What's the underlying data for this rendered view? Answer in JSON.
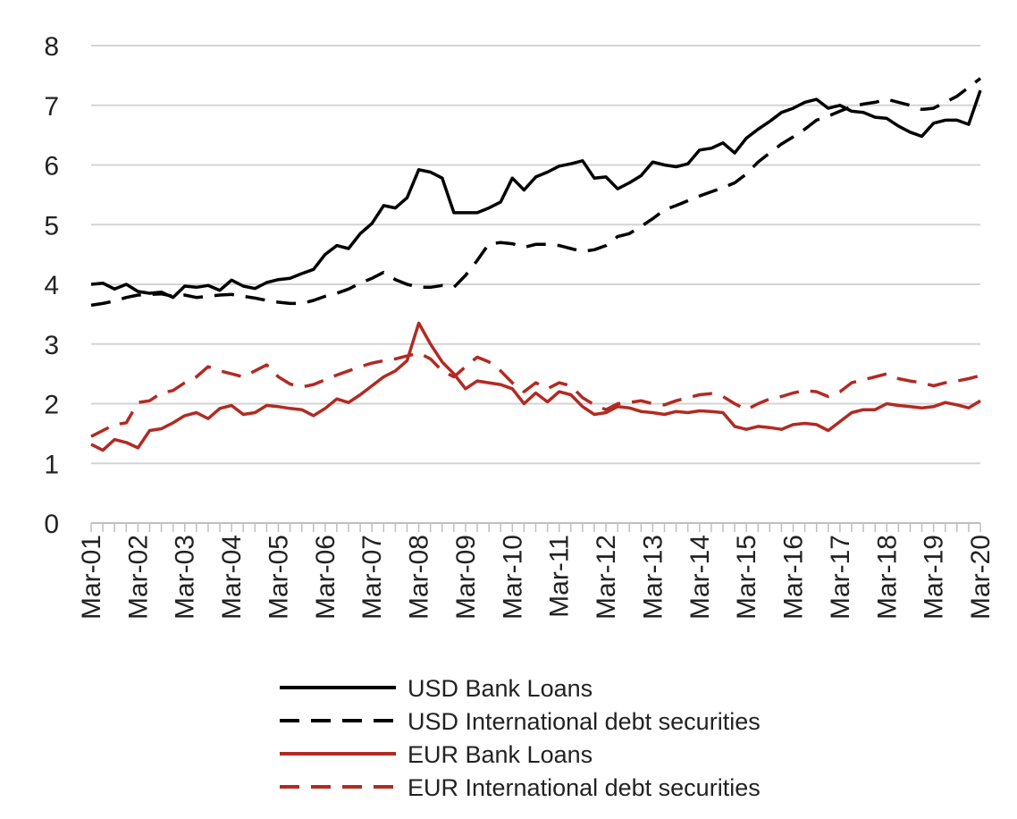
{
  "chart_data": {
    "type": "line",
    "title": "",
    "xlabel": "",
    "ylabel": "",
    "ylim": [
      0,
      8
    ],
    "yticks": [
      0,
      1,
      2,
      3,
      4,
      5,
      6,
      7,
      8
    ],
    "grid": "horizontal",
    "legend_position": "bottom",
    "x": [
      "Mar-01",
      "Jun-01",
      "Sep-01",
      "Dec-01",
      "Mar-02",
      "Jun-02",
      "Sep-02",
      "Dec-02",
      "Mar-03",
      "Jun-03",
      "Sep-03",
      "Dec-03",
      "Mar-04",
      "Jun-04",
      "Sep-04",
      "Dec-04",
      "Mar-05",
      "Jun-05",
      "Sep-05",
      "Dec-05",
      "Mar-06",
      "Jun-06",
      "Sep-06",
      "Dec-06",
      "Mar-07",
      "Jun-07",
      "Sep-07",
      "Dec-07",
      "Mar-08",
      "Jun-08",
      "Sep-08",
      "Dec-08",
      "Mar-09",
      "Jun-09",
      "Sep-09",
      "Dec-09",
      "Mar-10",
      "Jun-10",
      "Sep-10",
      "Dec-10",
      "Mar-11",
      "Jun-11",
      "Sep-11",
      "Dec-11",
      "Mar-12",
      "Jun-12",
      "Sep-12",
      "Dec-12",
      "Mar-13",
      "Jun-13",
      "Sep-13",
      "Dec-13",
      "Mar-14",
      "Jun-14",
      "Sep-14",
      "Dec-14",
      "Mar-15",
      "Jun-15",
      "Sep-15",
      "Dec-15",
      "Mar-16",
      "Jun-16",
      "Sep-16",
      "Dec-16",
      "Mar-17",
      "Jun-17",
      "Sep-17",
      "Dec-17",
      "Mar-18",
      "Jun-18",
      "Sep-18",
      "Dec-18",
      "Mar-19",
      "Jun-19",
      "Sep-19",
      "Dec-19",
      "Mar-20"
    ],
    "x_tick_labels": [
      "Mar-01",
      "Mar-02",
      "Mar-03",
      "Mar-04",
      "Mar-05",
      "Mar-06",
      "Mar-07",
      "Mar-08",
      "Mar-09",
      "Mar-10",
      "Mar-11",
      "Mar-12",
      "Mar-13",
      "Mar-14",
      "Mar-15",
      "Mar-16",
      "Mar-17",
      "Mar-18",
      "Mar-19",
      "Mar-20"
    ],
    "series": [
      {
        "name": "USD Bank Loans",
        "color": "#000000",
        "dash": "solid",
        "values": [
          4.0,
          4.02,
          3.92,
          4.0,
          3.88,
          3.85,
          3.87,
          3.78,
          3.97,
          3.95,
          3.98,
          3.9,
          4.07,
          3.97,
          3.93,
          4.03,
          4.08,
          4.1,
          4.18,
          4.25,
          4.5,
          4.65,
          4.6,
          4.85,
          5.02,
          5.32,
          5.28,
          5.45,
          5.92,
          5.88,
          5.78,
          5.2,
          5.2,
          5.2,
          5.28,
          5.38,
          5.78,
          5.58,
          5.8,
          5.88,
          5.98,
          6.02,
          6.07,
          5.78,
          5.8,
          5.6,
          5.7,
          5.82,
          6.05,
          6.0,
          5.97,
          6.02,
          6.25,
          6.28,
          6.37,
          6.2,
          6.45,
          6.6,
          6.73,
          6.88,
          6.95,
          7.05,
          7.1,
          6.95,
          7.0,
          6.9,
          6.88,
          6.8,
          6.78,
          6.65,
          6.55,
          6.48,
          6.7,
          6.75,
          6.75,
          6.68,
          7.25
        ]
      },
      {
        "name": "USD International debt securities",
        "color": "#000000",
        "dash": "dashed",
        "values": [
          3.65,
          3.68,
          3.72,
          3.78,
          3.82,
          3.83,
          3.84,
          3.8,
          3.82,
          3.78,
          3.8,
          3.82,
          3.83,
          3.8,
          3.77,
          3.73,
          3.7,
          3.68,
          3.68,
          3.73,
          3.8,
          3.85,
          3.92,
          4.02,
          4.1,
          4.2,
          4.08,
          4.0,
          3.95,
          3.95,
          3.98,
          3.95,
          4.15,
          4.4,
          4.68,
          4.7,
          4.68,
          4.62,
          4.67,
          4.67,
          4.65,
          4.6,
          4.55,
          4.58,
          4.65,
          4.8,
          4.85,
          4.97,
          5.1,
          5.25,
          5.32,
          5.4,
          5.48,
          5.55,
          5.62,
          5.7,
          5.85,
          6.05,
          6.2,
          6.35,
          6.47,
          6.6,
          6.75,
          6.82,
          6.9,
          6.98,
          7.02,
          7.05,
          7.1,
          7.05,
          7.0,
          6.93,
          6.95,
          7.05,
          7.15,
          7.3,
          7.45
        ]
      },
      {
        "name": "EUR Bank Loans",
        "color": "#b22a22",
        "dash": "solid",
        "values": [
          1.32,
          1.22,
          1.4,
          1.35,
          1.26,
          1.55,
          1.58,
          1.68,
          1.8,
          1.85,
          1.75,
          1.92,
          1.97,
          1.82,
          1.85,
          1.97,
          1.95,
          1.92,
          1.9,
          1.8,
          1.92,
          2.08,
          2.02,
          2.15,
          2.3,
          2.45,
          2.55,
          2.72,
          3.35,
          3.0,
          2.7,
          2.5,
          2.25,
          2.38,
          2.35,
          2.32,
          2.25,
          2.0,
          2.18,
          2.03,
          2.2,
          2.15,
          1.95,
          1.82,
          1.85,
          1.95,
          1.93,
          1.87,
          1.85,
          1.82,
          1.87,
          1.85,
          1.88,
          1.87,
          1.85,
          1.62,
          1.57,
          1.62,
          1.6,
          1.57,
          1.65,
          1.67,
          1.65,
          1.55,
          1.7,
          1.85,
          1.9,
          1.9,
          2.0,
          1.97,
          1.95,
          1.93,
          1.95,
          2.02,
          1.98,
          1.93,
          2.05
        ]
      },
      {
        "name": "EUR International debt securities",
        "color": "#b22a22",
        "dash": "dashed",
        "values": [
          1.45,
          1.55,
          1.65,
          1.68,
          2.02,
          2.05,
          2.18,
          2.22,
          2.35,
          2.45,
          2.62,
          2.55,
          2.5,
          2.45,
          2.55,
          2.65,
          2.45,
          2.33,
          2.28,
          2.32,
          2.4,
          2.48,
          2.55,
          2.62,
          2.68,
          2.72,
          2.75,
          2.8,
          2.85,
          2.75,
          2.55,
          2.45,
          2.62,
          2.78,
          2.7,
          2.55,
          2.35,
          2.2,
          2.35,
          2.25,
          2.35,
          2.3,
          2.1,
          1.98,
          1.9,
          2.0,
          2.02,
          2.05,
          2.0,
          1.98,
          2.05,
          2.1,
          2.15,
          2.17,
          2.12,
          2.0,
          1.9,
          2.0,
          2.08,
          2.12,
          2.18,
          2.22,
          2.2,
          2.12,
          2.2,
          2.35,
          2.4,
          2.45,
          2.5,
          2.42,
          2.38,
          2.35,
          2.3,
          2.35,
          2.38,
          2.42,
          2.47
        ]
      }
    ]
  }
}
